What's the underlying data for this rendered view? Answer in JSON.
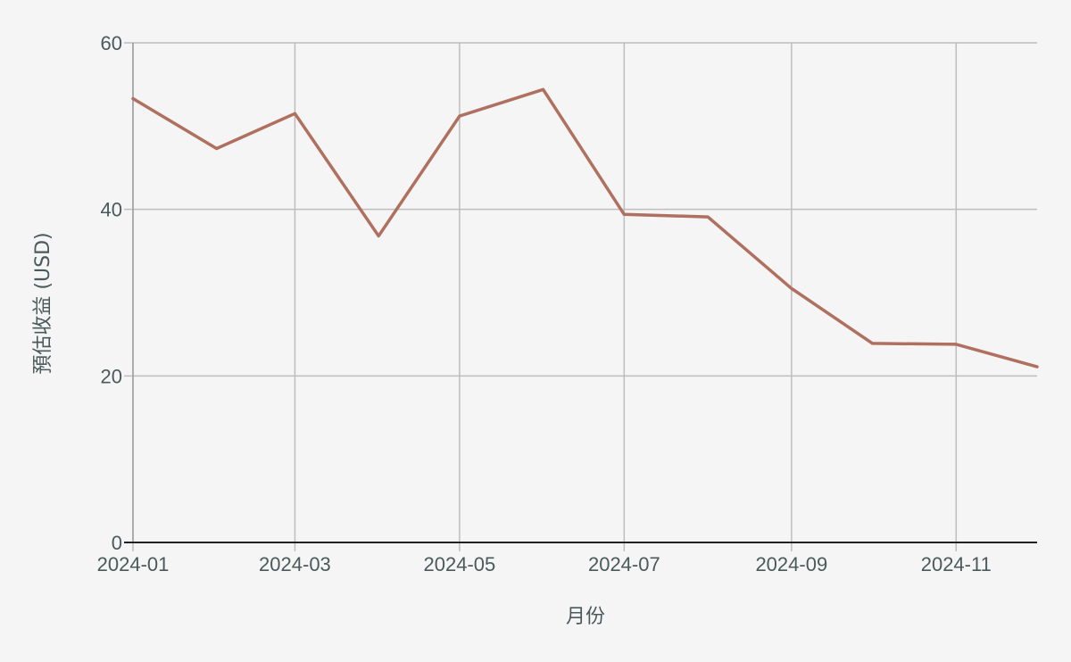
{
  "chart_data": {
    "type": "line",
    "title": "",
    "xlabel": "月份",
    "ylabel": "預估收益 (USD)",
    "x": [
      "2024-01",
      "2024-02",
      "2024-03",
      "2024-04",
      "2024-05",
      "2024-06",
      "2024-07",
      "2024-08",
      "2024-09",
      "2024-10",
      "2024-11",
      "2024-12"
    ],
    "x_tick_labels": [
      "2024-01",
      "2024-03",
      "2024-05",
      "2024-07",
      "2024-09",
      "2024-11"
    ],
    "y_ticks": [
      0,
      20,
      40,
      60
    ],
    "ylim": [
      0,
      60
    ],
    "grid": true,
    "series": [
      {
        "color": "#b07060",
        "values": [
          53.3,
          47.3,
          51.5,
          36.8,
          51.2,
          54.4,
          39.4,
          39.1,
          30.5,
          23.9,
          23.8,
          21.1
        ]
      }
    ]
  }
}
